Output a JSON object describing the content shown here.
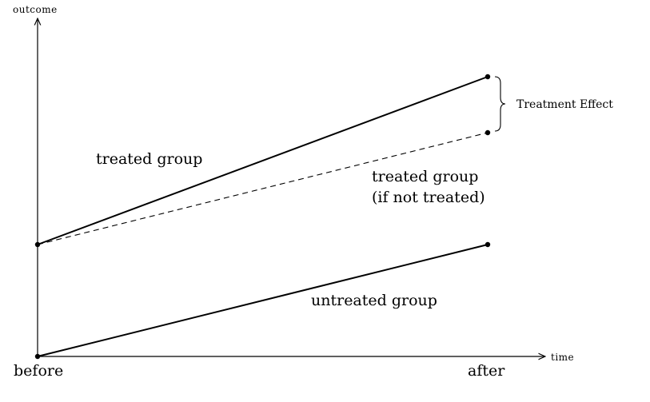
{
  "axes": {
    "y_label": "outcome",
    "x_label": "time",
    "x_ticks": [
      "before",
      "after"
    ]
  },
  "chart_data": {
    "type": "line",
    "x": [
      "before",
      "after"
    ],
    "series": [
      {
        "name": "treated group",
        "values": [
          1.0,
          2.5
        ],
        "style": "solid"
      },
      {
        "name": "treated group (if not treated)",
        "values": [
          1.0,
          2.0
        ],
        "style": "dashed"
      },
      {
        "name": "untreated group",
        "values": [
          0.0,
          1.0
        ],
        "style": "solid"
      }
    ],
    "annotations": {
      "treatment_effect": "Treatment Effect"
    },
    "counterfactual_label": [
      "treated group",
      "(if not treated)"
    ]
  }
}
